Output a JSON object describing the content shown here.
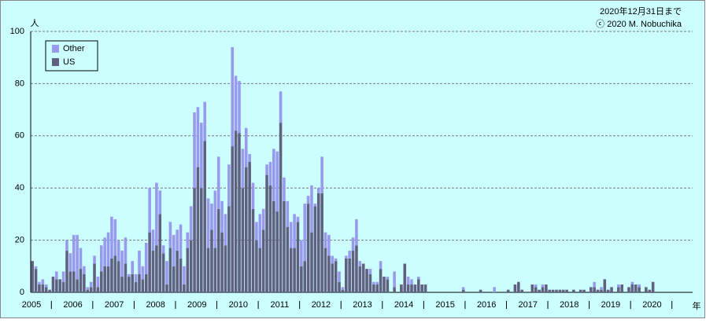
{
  "chart_data": {
    "type": "stacked-bar",
    "note_date": "2020年12月31日まで",
    "copyright": "ⓒ 2020 M. Nobuchika",
    "y_label": "人",
    "x_label": "年",
    "categories": [
      "2005",
      null,
      null,
      null,
      null,
      null,
      null,
      null,
      null,
      null,
      null,
      null,
      "2006",
      null,
      null,
      null,
      null,
      null,
      null,
      null,
      null,
      null,
      null,
      null,
      "2007",
      null,
      null,
      null,
      null,
      null,
      null,
      null,
      null,
      null,
      null,
      null,
      "2008",
      null,
      null,
      null,
      null,
      null,
      null,
      null,
      null,
      null,
      null,
      null,
      "2009",
      null,
      null,
      null,
      null,
      null,
      null,
      null,
      null,
      null,
      null,
      null,
      "2010",
      null,
      null,
      null,
      null,
      null,
      null,
      null,
      null,
      null,
      null,
      null,
      "2011",
      null,
      null,
      null,
      null,
      null,
      null,
      null,
      null,
      null,
      null,
      null,
      "2012",
      null,
      null,
      null,
      null,
      null,
      null,
      null,
      null,
      null,
      null,
      null,
      "2013",
      null,
      null,
      null,
      null,
      null,
      null,
      null,
      null,
      null,
      null,
      null,
      "2014",
      null,
      null,
      null,
      null,
      null,
      null,
      null,
      null,
      null,
      null,
      null,
      "2015",
      null,
      null,
      null,
      null,
      null,
      null,
      null,
      null,
      null,
      null,
      null,
      "2016",
      null,
      null,
      null,
      null,
      null,
      null,
      null,
      null,
      null,
      null,
      null,
      "2017",
      null,
      null,
      null,
      null,
      null,
      null,
      null,
      null,
      null,
      null,
      null,
      "2018",
      null,
      null,
      null,
      null,
      null,
      null,
      null,
      null,
      null,
      null,
      null,
      "2019",
      null,
      null,
      null,
      null,
      null,
      null,
      null,
      null,
      null,
      null,
      null,
      "2020",
      null,
      null,
      null,
      null,
      null,
      null,
      null,
      null,
      null,
      null,
      null
    ],
    "series": [
      {
        "name": "US",
        "color": "#606080",
        "values": [
          12,
          9,
          3,
          3,
          2,
          1,
          6,
          5,
          5,
          4,
          16,
          8,
          8,
          5,
          9,
          7,
          1,
          2,
          11,
          2,
          8,
          10,
          10,
          13,
          14,
          12,
          6,
          11,
          6,
          7,
          4,
          7,
          5,
          7,
          23,
          16,
          18,
          30,
          15,
          3,
          17,
          10,
          16,
          13,
          3,
          17,
          20,
          40,
          48,
          40,
          58,
          17,
          24,
          17,
          32,
          23,
          18,
          33,
          56,
          62,
          61,
          40,
          48,
          50,
          32,
          20,
          17,
          24,
          45,
          41,
          35,
          31,
          65,
          35,
          25,
          17,
          17,
          27,
          10,
          12,
          34,
          23,
          33,
          38,
          38,
          17,
          14,
          11,
          12,
          4,
          1,
          13,
          13,
          16,
          18,
          10,
          11,
          9,
          7,
          3,
          3,
          9,
          6,
          5,
          0,
          2,
          0,
          3,
          11,
          3,
          3,
          3,
          5,
          3,
          3,
          0,
          0,
          0,
          0,
          0,
          0,
          0,
          0,
          0,
          0,
          1,
          0,
          0,
          0,
          0,
          1,
          0,
          0,
          0,
          0,
          0,
          0,
          0,
          1,
          0,
          3,
          4,
          1,
          0,
          0,
          3,
          2,
          1,
          2,
          3,
          1,
          1,
          1,
          1,
          1,
          1,
          0,
          1,
          0,
          1,
          1,
          0,
          2,
          2,
          1,
          1,
          5,
          1,
          2,
          0,
          2,
          3,
          0,
          2,
          3,
          3,
          2,
          0,
          2,
          1,
          4,
          0,
          0,
          0,
          0,
          0,
          0,
          0,
          0,
          0,
          0,
          0
        ]
      },
      {
        "name": "Other",
        "color": "#9999ee",
        "values": [
          0,
          1,
          1,
          2,
          1,
          0,
          0,
          3,
          0,
          4,
          4,
          7,
          14,
          17,
          8,
          3,
          1,
          2,
          3,
          4,
          10,
          11,
          13,
          16,
          14,
          8,
          10,
          10,
          1,
          5,
          3,
          9,
          5,
          12,
          17,
          8,
          24,
          9,
          3,
          9,
          10,
          12,
          8,
          13,
          7,
          6,
          13,
          29,
          23,
          25,
          15,
          19,
          10,
          22,
          20,
          12,
          12,
          16,
          38,
          21,
          20,
          15,
          15,
          3,
          10,
          7,
          13,
          8,
          4,
          9,
          20,
          23,
          12,
          9,
          10,
          10,
          13,
          2,
          10,
          22,
          3,
          18,
          1,
          2,
          14,
          6,
          8,
          3,
          1,
          4,
          1,
          1,
          3,
          5,
          10,
          2,
          0,
          0,
          2,
          1,
          1,
          3,
          0,
          1,
          0,
          6,
          0,
          0,
          0,
          3,
          2,
          0,
          1,
          0,
          0,
          0,
          0,
          0,
          0,
          0,
          0,
          0,
          0,
          0,
          0,
          1,
          0,
          0,
          0,
          0,
          0,
          0,
          0,
          0,
          2,
          0,
          0,
          0,
          0,
          0,
          0,
          0,
          0,
          0,
          0,
          0,
          1,
          0,
          1,
          0,
          0,
          0,
          0,
          0,
          0,
          0,
          0,
          0,
          0,
          0,
          0,
          0,
          0,
          2,
          0,
          1,
          0,
          0,
          0,
          0,
          1,
          0,
          0,
          0,
          1,
          0,
          1,
          0,
          0,
          0,
          0,
          0,
          0,
          0,
          0,
          0,
          0,
          0,
          0,
          0,
          0,
          0
        ]
      }
    ],
    "ylim": [
      0,
      100
    ],
    "yticks": [
      0,
      20,
      40,
      60,
      80,
      100
    ],
    "grid": true,
    "legend": "top-left"
  }
}
